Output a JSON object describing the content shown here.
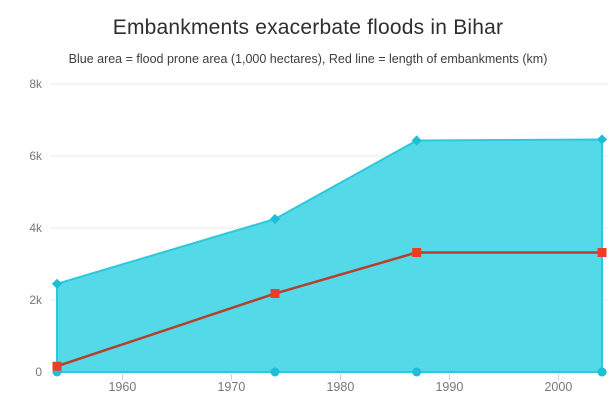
{
  "header": {
    "title": "Embankments exacerbate floods in Bihar",
    "subtitle": "Blue area = flood prone area (1,000 hectares), Red line = length of embankments (km)"
  },
  "chart_data": {
    "type": "area",
    "x": [
      1954,
      1974,
      1987,
      2004
    ],
    "series": [
      {
        "name": "Flood prone area (1,000 hectares)",
        "type": "area",
        "values": [
          2450,
          4250,
          6430,
          6460
        ],
        "fill_color": "#53d9e8",
        "stroke_color": "#2cc8db",
        "marker": "diamond",
        "marker_color": "#1cbfd5"
      },
      {
        "name": "Length of embankments (km)",
        "type": "line",
        "values": [
          160,
          2180,
          3320,
          3320
        ],
        "line_color": "#b5402e",
        "marker": "square",
        "marker_color": "#ee3c25"
      }
    ],
    "title": "Embankments exacerbate floods in Bihar",
    "xlabel": "",
    "ylabel": "",
    "xlim": [
      1954,
      2004
    ],
    "ylim": [
      0,
      8000
    ],
    "x_ticks": [
      1960,
      1970,
      1980,
      1990,
      2000
    ],
    "y_ticks": [
      {
        "value": 0,
        "label": "0"
      },
      {
        "value": 2000,
        "label": "2k"
      },
      {
        "value": 4000,
        "label": "4k"
      },
      {
        "value": 6000,
        "label": "6k"
      },
      {
        "value": 8000,
        "label": "8k"
      }
    ],
    "grid": true,
    "legend_position": "none (legend encoded in subtitle)",
    "baseline_markers": true
  },
  "colors": {
    "background": "#ffffff",
    "gridline": "#ebebeb",
    "axis_text": "#777777",
    "tick_mark": "#cccccc",
    "title_text": "#2e2e2e",
    "subtitle_text": "#3d3d3d",
    "area_fill": "#53d9e8",
    "area_stroke": "#2cc8db",
    "area_marker": "#1cbfd5",
    "line_red": "#b5402e",
    "line_marker_red": "#ee3c25"
  }
}
